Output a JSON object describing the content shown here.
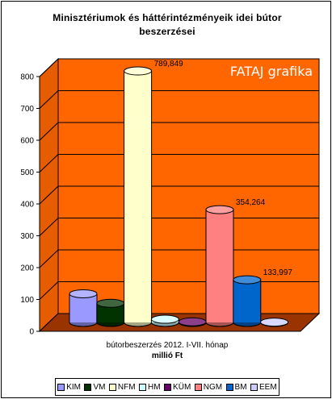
{
  "chart_data": {
    "type": "bar",
    "title": "Minisztériumok és háttérintézményeik idei bútor beszerzései",
    "watermark": "FATAJ grafika",
    "category": "bútorbeszerzés 2012. I-VII. hónap",
    "xlabel": "millió Ft",
    "ylim": [
      0,
      800
    ],
    "yticks": [
      "0",
      "100",
      "200",
      "300",
      "400",
      "500",
      "600",
      "700",
      "800"
    ],
    "grid": true,
    "legend_position": "bottom",
    "background_color": "#ff6600",
    "series": [
      {
        "name": "KIM",
        "value": 90,
        "color": "#9999ff",
        "label": ""
      },
      {
        "name": "VM",
        "value": 60,
        "color": "#003300",
        "label": ""
      },
      {
        "name": "NFM",
        "value": 789.849,
        "color": "#ffffcc",
        "label": "789,849"
      },
      {
        "name": "HM",
        "value": 10,
        "color": "#ccffff",
        "label": ""
      },
      {
        "name": "KÜM",
        "value": 2,
        "color": "#660066",
        "label": ""
      },
      {
        "name": "NGM",
        "value": 354.264,
        "color": "#ff8080",
        "label": "354,264"
      },
      {
        "name": "BM",
        "value": 133.997,
        "color": "#0066cc",
        "label": "133,997"
      },
      {
        "name": "EEM",
        "value": 1,
        "color": "#ccccff",
        "label": ""
      }
    ]
  }
}
